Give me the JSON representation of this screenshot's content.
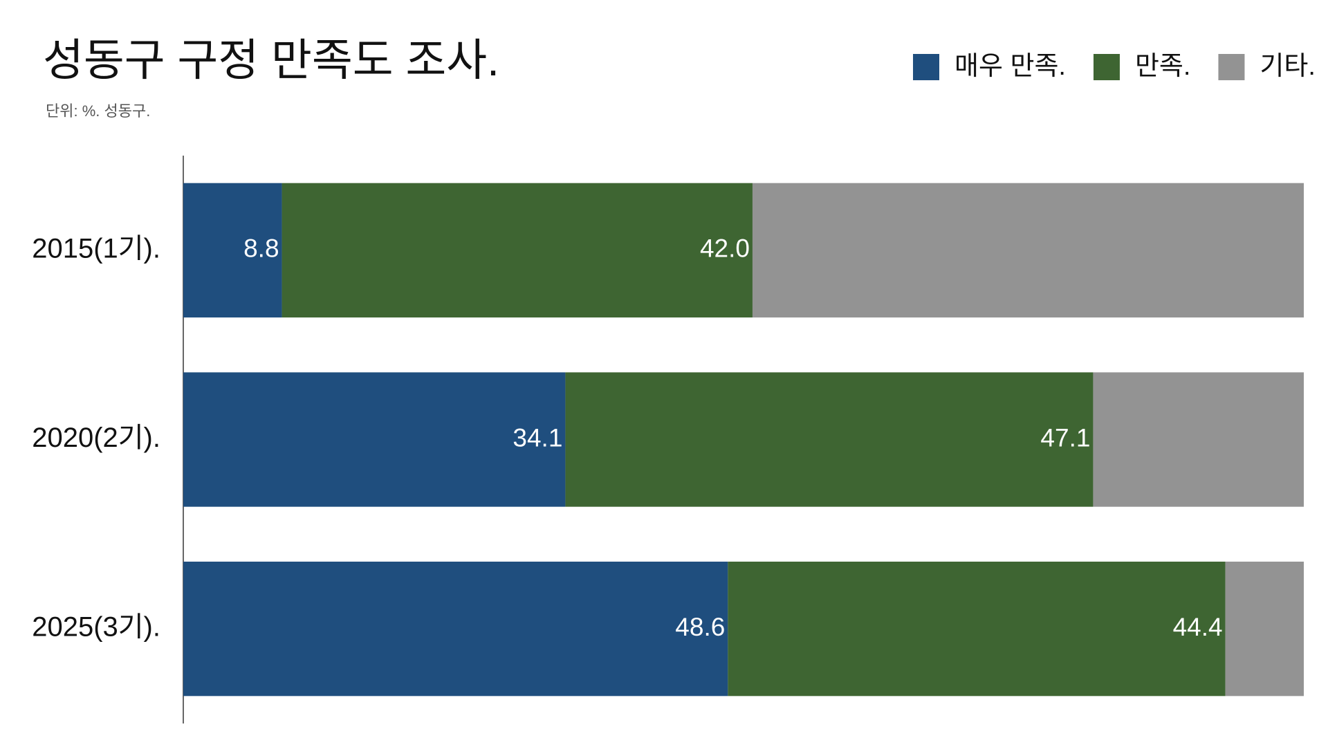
{
  "chart_data": {
    "type": "stacked_barh",
    "title": "성동구 구정 만족도 조사.",
    "subtitle": "단위: %. 성동구.",
    "categories": [
      "2015(1기).",
      "2020(2기).",
      "2025(3기)."
    ],
    "series": [
      {
        "name": "매우 만족.",
        "color": "#1f4e7e",
        "values": [
          8.8,
          34.1,
          48.6
        ],
        "data_labels": true
      },
      {
        "name": "만족.",
        "color": "#3e6532",
        "values": [
          42.0,
          47.1,
          44.4
        ],
        "value_labels": [
          "42.0",
          "47.1",
          "44.4"
        ],
        "data_labels": true
      },
      {
        "name": "기타.",
        "color": "#939393",
        "values": [
          49.2,
          18.8,
          7.0
        ],
        "data_labels": false
      }
    ],
    "xlim": [
      0,
      100
    ],
    "legend": "top-right"
  }
}
